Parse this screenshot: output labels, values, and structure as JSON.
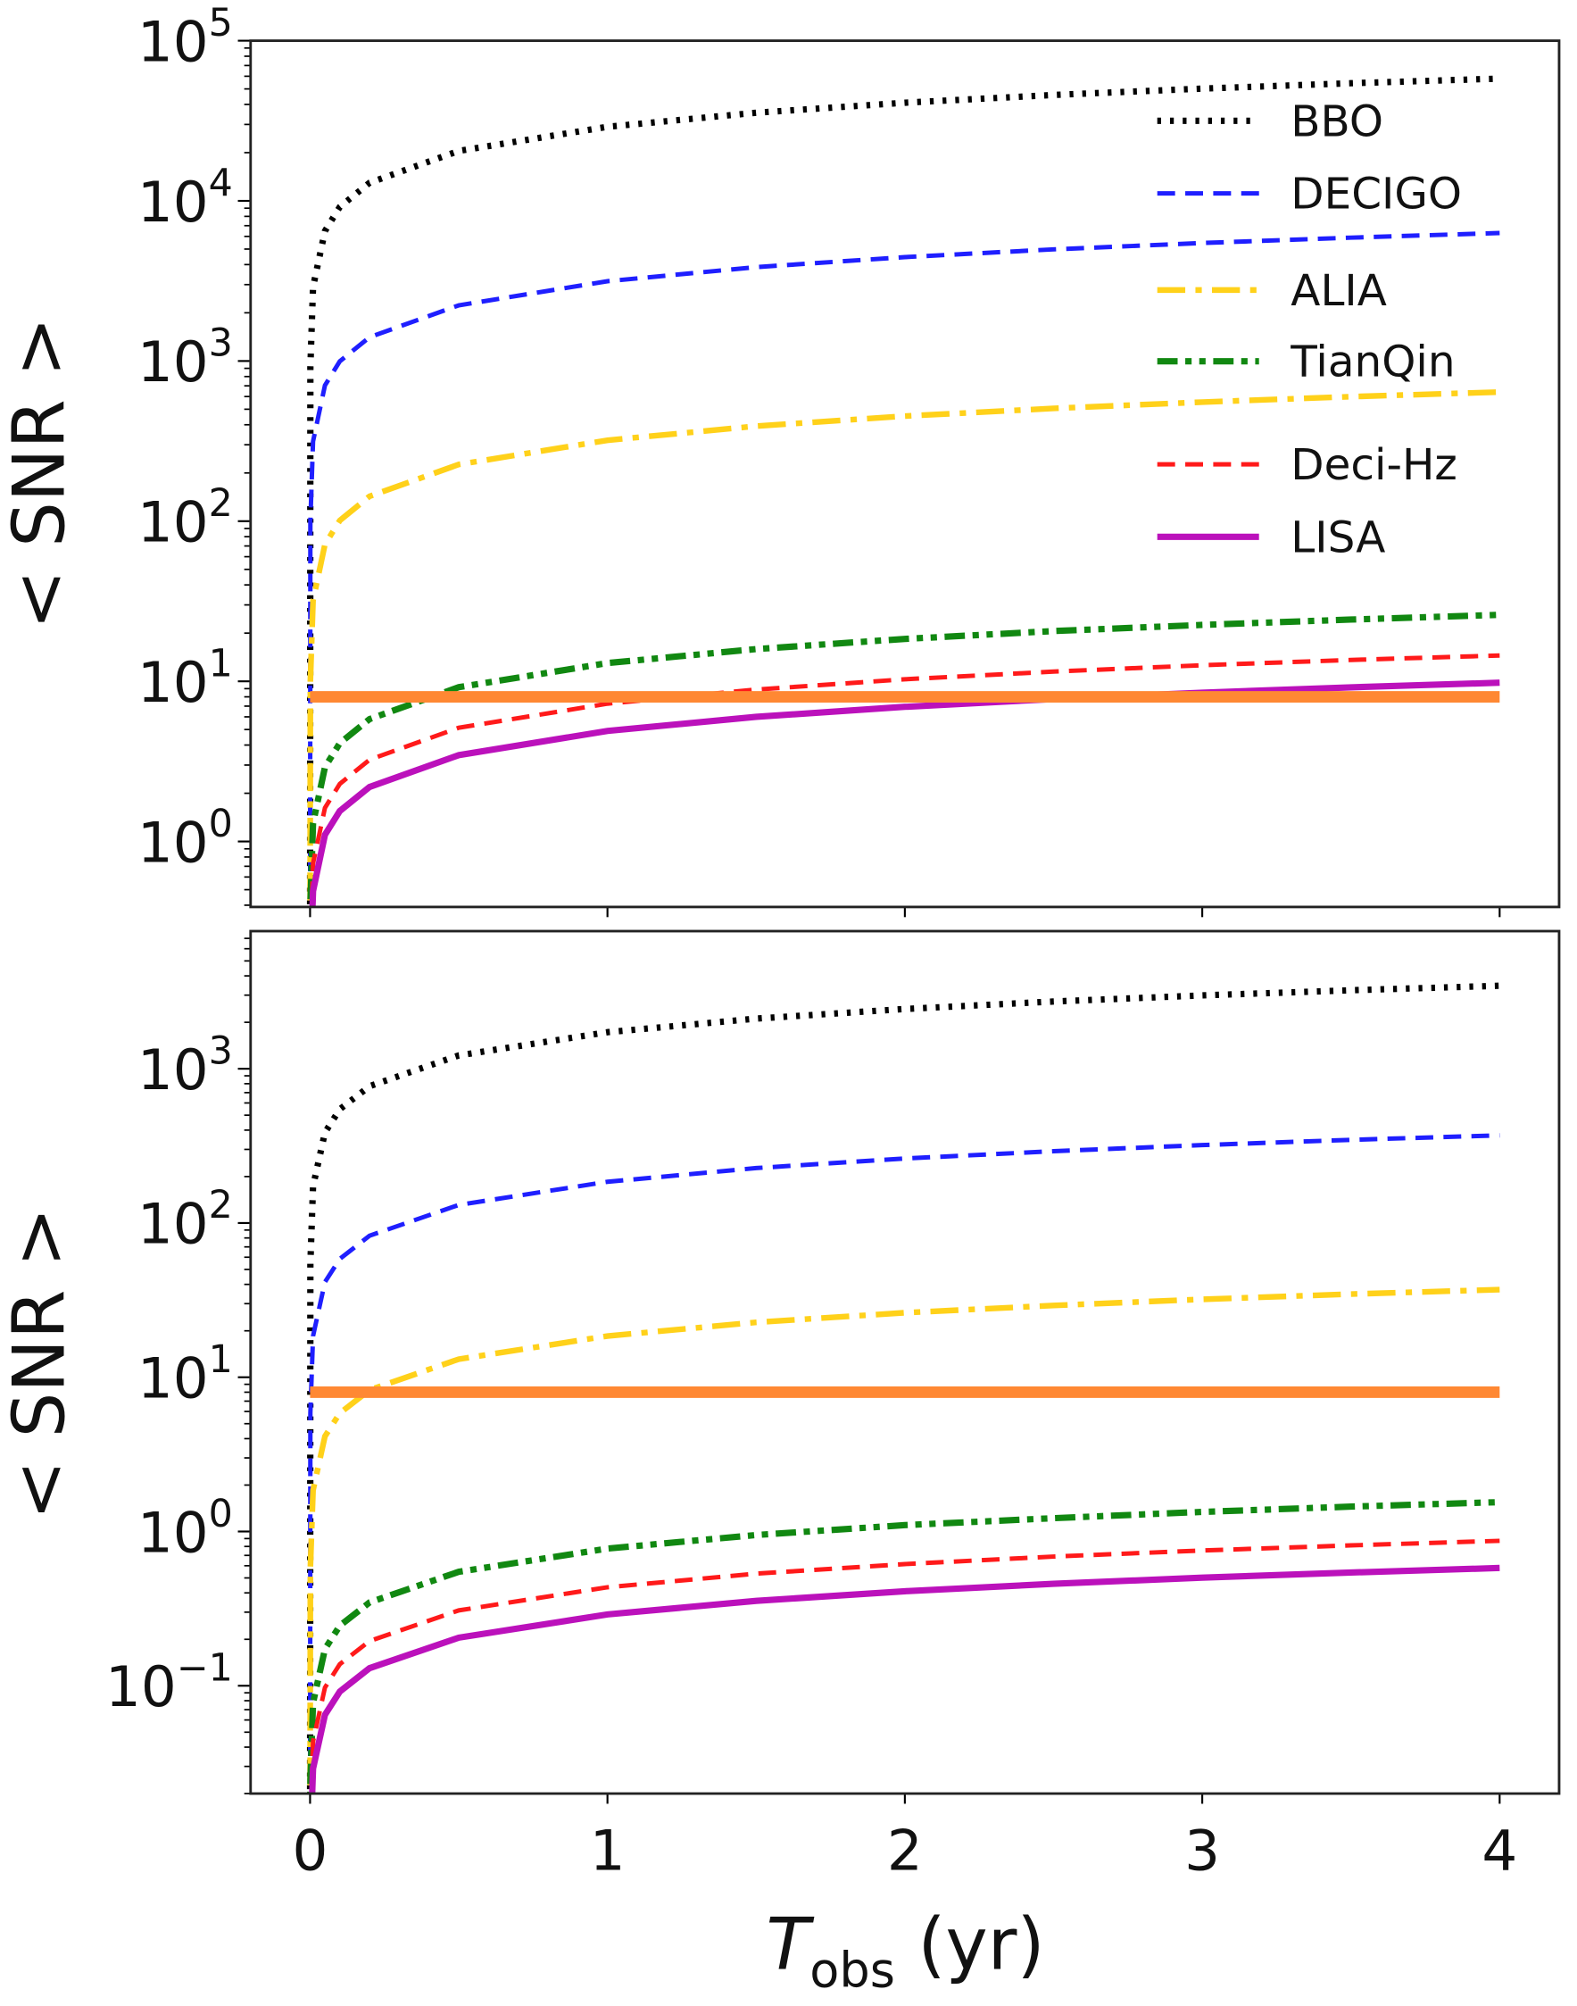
{
  "chart_data": [
    {
      "type": "line",
      "panel": "top",
      "xlabel": "",
      "ylabel": "< SNR >",
      "yscale": "log",
      "xlim": [
        -0.2,
        4.2
      ],
      "ylim": [
        0.39,
        100000
      ],
      "xticks": [
        0,
        1,
        2,
        3,
        4
      ],
      "xtick_labels_shown": false,
      "yticks": [
        {
          "base": "10",
          "exp": "0",
          "value": 1
        },
        {
          "base": "10",
          "exp": "1",
          "value": 10
        },
        {
          "base": "10",
          "exp": "2",
          "value": 100
        },
        {
          "base": "10",
          "exp": "3",
          "value": 1000
        },
        {
          "base": "10",
          "exp": "4",
          "value": 10000
        },
        {
          "base": "10",
          "exp": "5",
          "value": 100000
        }
      ],
      "grid": false,
      "legend_position": "top-right",
      "x": [
        0.001,
        0.01,
        0.05,
        0.1,
        0.2,
        0.5,
        1,
        1.5,
        2,
        2.5,
        3,
        3.5,
        4
      ],
      "series": [
        {
          "name": "BBO",
          "color": "#000000",
          "style": "dotted",
          "values": [
            917,
            2900,
            6480,
            9170,
            12970,
            20500,
            29000,
            35500,
            41000,
            45850,
            50230,
            54250,
            58000
          ]
        },
        {
          "name": "DECIGO",
          "color": "#1f1fff",
          "style": "dashed",
          "values": [
            100,
            315,
            704,
            996,
            1409,
            2227,
            3150,
            3858,
            4455,
            4980,
            5456,
            5893,
            6300
          ]
        },
        {
          "name": "ALIA",
          "color": "#ffd11a",
          "style": "dashdot",
          "values": [
            10.1,
            32,
            71.6,
            101,
            143,
            226,
            320,
            392,
            453,
            506,
            554,
            599,
            640
          ]
        },
        {
          "name": "TianQin",
          "color": "#118811",
          "style": "dashdotdot",
          "values": [
            0.41,
            1.3,
            2.91,
            4.11,
            5.81,
            9.19,
            13,
            15.9,
            18.4,
            20.6,
            22.5,
            24.3,
            26
          ]
        },
        {
          "name": "Deci-Hz",
          "color": "#ff1a1a",
          "style": "dashed",
          "values": [
            0.23,
            0.73,
            1.62,
            2.29,
            3.24,
            5.13,
            7.25,
            8.88,
            10.3,
            11.5,
            12.6,
            13.6,
            14.5
          ]
        },
        {
          "name": "LISA",
          "color": "#bb11bb",
          "style": "solid",
          "values": [
            0.155,
            0.49,
            1.1,
            1.55,
            2.19,
            3.46,
            4.9,
            6.0,
            6.93,
            7.75,
            8.49,
            9.17,
            9.8
          ]
        }
      ],
      "threshold": {
        "value": 8,
        "color": "#ff8833"
      }
    },
    {
      "type": "line",
      "panel": "bottom",
      "xlabel": "T_obs (yr)",
      "xlabel_main": "T",
      "xlabel_sub": "obs",
      "xlabel_unit": " (yr)",
      "ylabel": "< SNR >",
      "yscale": "log",
      "xlim": [
        -0.2,
        4.2
      ],
      "ylim": [
        0.02,
        7800
      ],
      "xticks": [
        0,
        1,
        2,
        3,
        4
      ],
      "xtick_labels": [
        "0",
        "1",
        "2",
        "3",
        "4"
      ],
      "yticks": [
        {
          "base": "10",
          "exp": "−1",
          "value": 0.1
        },
        {
          "base": "10",
          "exp": "0",
          "value": 1
        },
        {
          "base": "10",
          "exp": "1",
          "value": 10
        },
        {
          "base": "10",
          "exp": "2",
          "value": 100
        },
        {
          "base": "10",
          "exp": "3",
          "value": 1000
        }
      ],
      "grid": false,
      "x": [
        0.001,
        0.01,
        0.05,
        0.1,
        0.2,
        0.5,
        1,
        1.5,
        2,
        2.5,
        3,
        3.5,
        4
      ],
      "series": [
        {
          "name": "BBO",
          "color": "#000000",
          "style": "dotted",
          "values": [
            54.5,
            173,
            386,
            546,
            771,
            1220,
            1725,
            2113,
            2440,
            2728,
            2988,
            3227,
            3450
          ]
        },
        {
          "name": "DECIGO",
          "color": "#1f1fff",
          "style": "dashed",
          "values": [
            5.85,
            18.5,
            41.4,
            58.5,
            82.7,
            131,
            185,
            227,
            262,
            292,
            320,
            346,
            370
          ]
        },
        {
          "name": "ALIA",
          "color": "#ffd11a",
          "style": "dashdot",
          "values": [
            0.585,
            1.85,
            4.14,
            5.85,
            8.27,
            13.1,
            18.5,
            22.7,
            26.2,
            29.2,
            32,
            34.6,
            37
          ]
        },
        {
          "name": "TianQin",
          "color": "#118811",
          "style": "dashdotdot",
          "values": [
            0.0245,
            0.0775,
            0.173,
            0.245,
            0.347,
            0.548,
            0.775,
            0.949,
            1.1,
            1.22,
            1.34,
            1.45,
            1.55
          ]
        },
        {
          "name": "Deci-Hz",
          "color": "#ff1a1a",
          "style": "dashed",
          "values": [
            0.0138,
            0.0435,
            0.0973,
            0.138,
            0.195,
            0.308,
            0.435,
            0.533,
            0.615,
            0.688,
            0.753,
            0.813,
            0.87
          ]
        },
        {
          "name": "LISA",
          "color": "#bb11bb",
          "style": "solid",
          "values": [
            0.0092,
            0.029,
            0.0648,
            0.0917,
            0.13,
            0.205,
            0.29,
            0.355,
            0.41,
            0.458,
            0.502,
            0.542,
            0.58
          ]
        }
      ],
      "threshold": {
        "value": 8,
        "color": "#ff8833"
      }
    }
  ]
}
